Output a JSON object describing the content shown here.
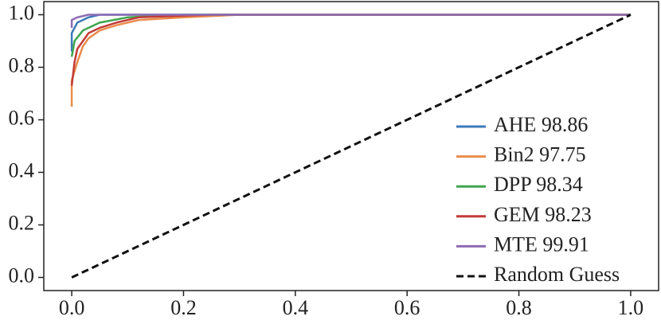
{
  "chart_data": {
    "type": "line",
    "xlim": [
      -0.05,
      1.05
    ],
    "ylim": [
      -0.05,
      1.05
    ],
    "xticks": [
      {
        "value": 0,
        "label": "0.0"
      },
      0.2,
      0.4,
      0.6,
      0.8,
      {
        "value": 1,
        "label": "1.0"
      }
    ],
    "yticks": [
      {
        "value": 0,
        "label": "0.0"
      },
      0.2,
      0.4,
      0.6,
      0.8,
      {
        "value": 1,
        "label": "1.0"
      }
    ],
    "legend": "lower right",
    "series": [
      {
        "name": "AHE 98.86",
        "color": "#3d7ab8",
        "x": [
          0,
          0,
          0.005,
          0.01,
          0.02,
          0.03,
          0.05,
          1
        ],
        "values": [
          0.86,
          0.93,
          0.95,
          0.97,
          0.98,
          0.99,
          1.0,
          1.0
        ]
      },
      {
        "name": "Bin2 97.75",
        "color": "#ea8c4c",
        "x": [
          0,
          0,
          0.01,
          0.02,
          0.03,
          0.05,
          0.08,
          0.12,
          0.2,
          0.3,
          1
        ],
        "values": [
          0.65,
          0.75,
          0.82,
          0.88,
          0.91,
          0.94,
          0.96,
          0.98,
          0.99,
          1.0,
          1.0
        ]
      },
      {
        "name": "DPP 98.34",
        "color": "#3ea54f",
        "x": [
          0,
          0.005,
          0.02,
          0.05,
          0.1,
          0.2,
          1
        ],
        "values": [
          0.84,
          0.9,
          0.94,
          0.97,
          0.99,
          1.0,
          1.0
        ]
      },
      {
        "name": "GEM 98.23",
        "color": "#c23c38",
        "x": [
          0,
          0.005,
          0.01,
          0.03,
          0.05,
          0.08,
          0.12,
          0.25,
          1
        ],
        "values": [
          0.73,
          0.82,
          0.87,
          0.93,
          0.95,
          0.97,
          0.99,
          1.0,
          1.0
        ]
      },
      {
        "name": "MTE 99.91",
        "color": "#8d6cb3",
        "x": [
          0,
          0,
          0.01,
          0.03,
          1
        ],
        "values": [
          0.95,
          0.98,
          0.99,
          1.0,
          1.0
        ]
      },
      {
        "name": "Random Guess",
        "color": "#111111",
        "linestyle": "dashed",
        "x": [
          0,
          1
        ],
        "values": [
          0,
          1
        ]
      }
    ]
  }
}
